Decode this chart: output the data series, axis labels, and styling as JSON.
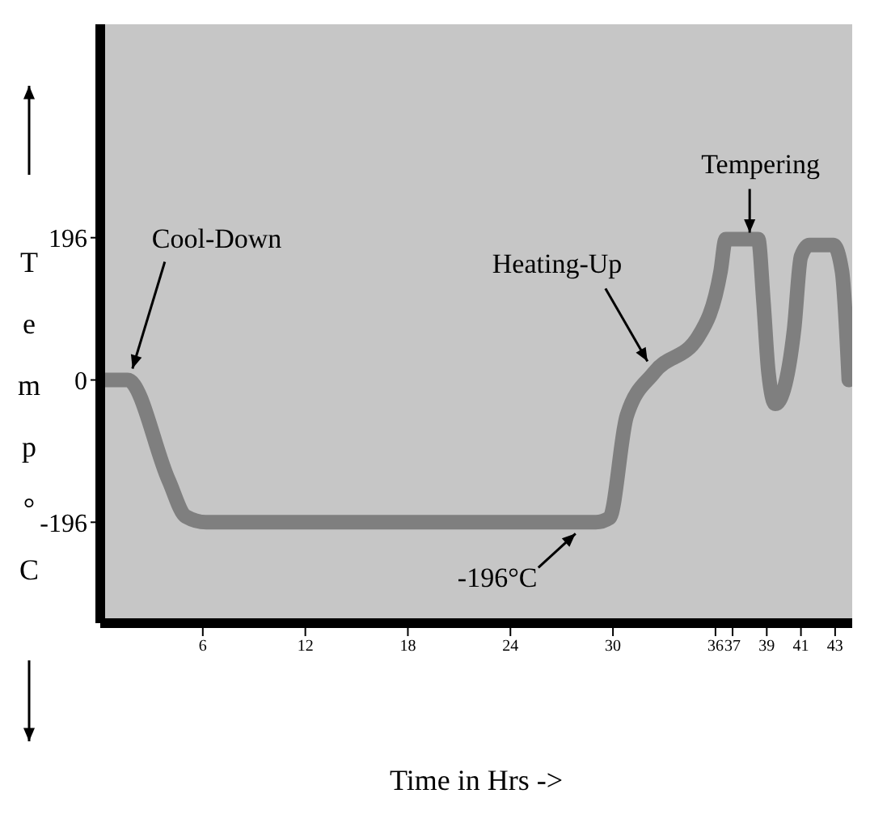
{
  "chart_data": {
    "type": "line",
    "xlabel": "Time in Hrs ->",
    "ylabel": "Temp°C",
    "x": [
      0,
      1.6,
      4,
      5,
      6.2,
      12,
      18,
      24,
      29,
      29.8,
      30.8,
      32.4,
      35,
      36.3,
      36.6,
      38.5,
      38.8,
      39.1,
      39.5,
      40,
      40.6,
      41,
      41.5,
      42.9,
      43.4,
      43.8
    ],
    "series": [
      {
        "color": "#7f7f7f",
        "values": [
          0,
          0,
          -138,
          -188,
          -196,
          -196,
          -196,
          -196,
          -196,
          -190,
          -50,
          10,
          60,
          150,
          194,
          194,
          110,
          10,
          -33,
          -13,
          70,
          170,
          186,
          186,
          150,
          0
        ]
      }
    ],
    "xlim": [
      0,
      44
    ],
    "xticks": [
      6,
      12,
      18,
      24,
      30,
      36,
      37,
      39,
      41,
      43
    ],
    "ylim": [
      -335,
      490
    ],
    "yticks": [
      -196,
      0,
      196
    ],
    "annotations": [
      {
        "text": "Cool-Down",
        "x": 1.6,
        "y": 0
      },
      {
        "text": "-196°C",
        "x": 28,
        "y": -196
      },
      {
        "text": "Heating-Up",
        "x": 32.4,
        "y": 10
      },
      {
        "text": "Tempering",
        "x": 38,
        "y": 194
      }
    ],
    "marker": "none",
    "line_style": "solid"
  }
}
